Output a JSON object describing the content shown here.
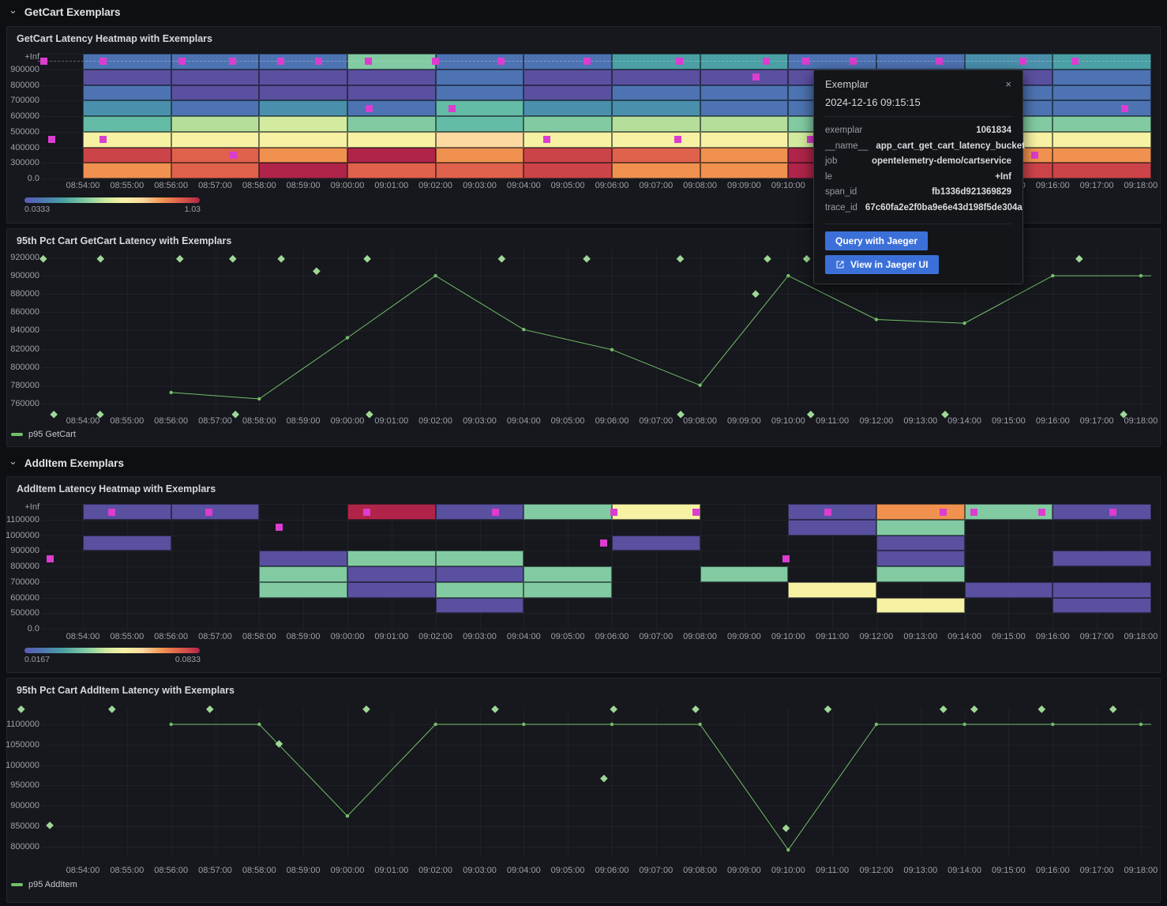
{
  "sections": [
    {
      "title": "GetCart Exemplars"
    },
    {
      "title": "AddItem Exemplars"
    }
  ],
  "time_labels": [
    "08:54:00",
    "08:55:00",
    "08:56:00",
    "08:57:00",
    "08:58:00",
    "08:59:00",
    "09:00:00",
    "09:01:00",
    "09:02:00",
    "09:03:00",
    "09:04:00",
    "09:05:00",
    "09:06:00",
    "09:07:00",
    "09:08:00",
    "09:09:00",
    "09:10:00",
    "09:11:00",
    "09:12:00",
    "09:13:00",
    "09:14:00",
    "09:15:00",
    "09:16:00",
    "09:17:00",
    "09:18:00"
  ],
  "palette": {
    "P": "#5a50a0",
    "B": "#4d73b2",
    "SB": "#4a90ad",
    "T": "#4aa0a4",
    "TG": "#64bba6",
    "G": "#82cba2",
    "LG": "#b5de9b",
    "YG": "#d3eb9f",
    "Y": "#f7f1a4",
    "PY": "#fbd9a0",
    "O": "#f0914f",
    "RO": "#e0614c",
    "R": "#cc4449",
    "DR": "#b02449"
  },
  "colors": {
    "exemplar": "#dc3cd0",
    "line": "#73bf69",
    "diamond": "#9fd796",
    "button_bg": "#3c70d9"
  },
  "heatmap_getcart": {
    "title": "GetCart Latency Heatmap with Exemplars",
    "y_labels": [
      "+Inf",
      "900000",
      "800000",
      "700000",
      "600000",
      "500000",
      "400000",
      "300000",
      "0.0"
    ],
    "legend": {
      "min": "0.0333",
      "max": "1.03"
    },
    "cells": [
      [
        "B",
        "B",
        "B",
        "G",
        "B",
        "B",
        "T",
        "T",
        "B",
        "B",
        "SB",
        "T"
      ],
      [
        "P",
        "P",
        "P",
        "P",
        "B",
        "P",
        "P",
        "P",
        "P",
        "P",
        "P",
        "B"
      ],
      [
        "B",
        "P",
        "P",
        "P",
        "B",
        "P",
        "B",
        "B",
        "B",
        "B",
        "B",
        "B"
      ],
      [
        "SB",
        "B",
        "SB",
        "B",
        "TG",
        "SB",
        "SB",
        "B",
        "B",
        "B",
        "B",
        "B"
      ],
      [
        "TG",
        "LG",
        "YG",
        "G",
        "TG",
        "G",
        "LG",
        "LG",
        "G",
        "G",
        "G",
        "G"
      ],
      [
        "Y",
        "Y",
        "Y",
        "Y",
        "PY",
        "Y",
        "Y",
        "Y",
        "YG",
        "Y",
        "Y",
        "Y"
      ],
      [
        "R",
        "RO",
        "O",
        "DR",
        "O",
        "R",
        "RO",
        "O",
        "DR",
        "O",
        "O",
        "O"
      ],
      [
        "O",
        "RO",
        "DR",
        "RO",
        "RO",
        "R",
        "O",
        "O",
        "DR",
        "RO",
        "R",
        "R"
      ]
    ],
    "exemplars_inf_t": [
      -0.88,
      0.45,
      2.24,
      3.4,
      4.48,
      5.34,
      6.48,
      8.0,
      9.49,
      11.43,
      13.54,
      15.5,
      16.4,
      17.48,
      19.42,
      21.33,
      22.51
    ],
    "exemplars_body": [
      {
        "t": 15.26,
        "row": 1
      },
      {
        "t": 6.5,
        "row": 3
      },
      {
        "t": 8.38,
        "row": 3
      },
      {
        "t": 23.64,
        "row": 3
      },
      {
        "t": -0.7,
        "row": 5
      },
      {
        "t": 0.45,
        "row": 5
      },
      {
        "t": 10.53,
        "row": 5
      },
      {
        "t": 13.5,
        "row": 5
      },
      {
        "t": 16.5,
        "row": 5
      },
      {
        "t": 3.42,
        "row": 6
      },
      {
        "t": 21.6,
        "row": 6
      }
    ]
  },
  "line_getcart": {
    "title": "95th Pct Cart GetCart Latency with Exemplars",
    "legend": "p95 GetCart",
    "y_ticks": [
      "920000",
      "900000",
      "880000",
      "860000",
      "840000",
      "820000",
      "800000",
      "780000",
      "760000"
    ],
    "times": [
      2,
      4,
      6,
      8,
      10,
      12,
      14,
      16,
      18,
      20,
      22,
      24
    ],
    "values": [
      772000,
      765000,
      832000,
      900000,
      841000,
      819000,
      780000,
      900000,
      852000,
      848000,
      900000,
      900000
    ],
    "diamonds": [
      [
        -0.9,
        918500
      ],
      [
        0.4,
        918500
      ],
      [
        2.2,
        918500
      ],
      [
        3.4,
        918500
      ],
      [
        4.5,
        918500
      ],
      [
        6.45,
        918500
      ],
      [
        9.5,
        918500
      ],
      [
        11.43,
        918500
      ],
      [
        13.55,
        918500
      ],
      [
        15.53,
        918500
      ],
      [
        16.42,
        918500
      ],
      [
        22.6,
        918500
      ],
      [
        5.3,
        905000
      ],
      [
        15.26,
        880000
      ],
      [
        -0.66,
        748000
      ],
      [
        0.39,
        748000
      ],
      [
        3.46,
        748000
      ],
      [
        6.5,
        748000
      ],
      [
        13.56,
        748000
      ],
      [
        16.51,
        748000
      ],
      [
        19.56,
        748000
      ],
      [
        23.61,
        748000
      ]
    ]
  },
  "heatmap_additem": {
    "title": "AddItem Latency Heatmap with Exemplars",
    "y_labels": [
      "+Inf",
      "1100000",
      "1000000",
      "900000",
      "800000",
      "700000",
      "600000",
      "500000",
      "0.0"
    ],
    "legend": {
      "min": "0.0167",
      "max": "0.0833"
    },
    "cells": [
      [
        "P",
        "P",
        null,
        "DR",
        "P",
        "G",
        "Y",
        null,
        "P",
        "O",
        "G",
        "P"
      ],
      [
        null,
        null,
        null,
        null,
        null,
        null,
        null,
        null,
        "P",
        "G",
        null,
        null
      ],
      [
        "P",
        null,
        null,
        null,
        null,
        null,
        "P",
        null,
        null,
        "P",
        null,
        null
      ],
      [
        null,
        null,
        "P",
        "G",
        "G",
        null,
        null,
        null,
        null,
        "P",
        null,
        "P"
      ],
      [
        null,
        null,
        "G",
        "P",
        "P",
        "G",
        null,
        "G",
        null,
        "G",
        null,
        null
      ],
      [
        null,
        null,
        "G",
        "P",
        "G",
        "G",
        null,
        null,
        "Y",
        null,
        "P",
        "P"
      ],
      [
        null,
        null,
        null,
        null,
        "P",
        null,
        null,
        null,
        null,
        "Y",
        null,
        "P"
      ],
      [
        null,
        null,
        null,
        null,
        null,
        null,
        null,
        null,
        null,
        null,
        null,
        null
      ]
    ],
    "exemplars_inf_t": [
      0.65,
      2.85,
      6.44,
      9.35,
      12.04,
      13.9,
      16.9,
      19.52,
      20.22,
      21.75,
      23.37
    ],
    "exemplars_body": [
      {
        "t": -0.75,
        "row": 3
      },
      {
        "t": 4.45,
        "row": 1
      },
      {
        "t": 11.82,
        "row": 2
      },
      {
        "t": 15.95,
        "row": 3
      }
    ]
  },
  "line_additem": {
    "title": "95th Pct Cart AddItem Latency with Exemplars",
    "legend": "p95 AddItem",
    "y_ticks": [
      "1100000",
      "1050000",
      "1000000",
      "950000",
      "900000",
      "850000",
      "800000"
    ],
    "times": [
      2,
      4,
      6,
      8,
      10,
      12,
      14,
      16,
      18,
      20,
      22,
      24
    ],
    "values": [
      1100000,
      1100000,
      875000,
      1100000,
      1100000,
      1100000,
      1100000,
      792000,
      1100000,
      1100000,
      1100000,
      1100000
    ],
    "diamonds": [
      [
        -1.4,
        1137000
      ],
      [
        0.66,
        1137000
      ],
      [
        2.88,
        1137000
      ],
      [
        6.43,
        1137000
      ],
      [
        9.35,
        1137000
      ],
      [
        12.04,
        1137000
      ],
      [
        13.9,
        1137000
      ],
      [
        16.9,
        1137000
      ],
      [
        19.52,
        1137000
      ],
      [
        20.22,
        1137000
      ],
      [
        21.75,
        1137000
      ],
      [
        23.37,
        1137000
      ],
      [
        -0.75,
        852000
      ],
      [
        4.45,
        1052000
      ],
      [
        11.82,
        967000
      ],
      [
        15.95,
        845000
      ]
    ]
  },
  "tooltip": {
    "title": "Exemplar",
    "close_icon": "×",
    "timestamp": "2024-12-16 09:15:15",
    "rows": [
      [
        "exemplar",
        "1061834"
      ],
      [
        "__name__",
        "app_cart_get_cart_latency_bucket"
      ],
      [
        "job",
        "opentelemetry-demo/cartservice"
      ],
      [
        "le",
        "+Inf"
      ],
      [
        "span_id",
        "fb1336d921369829"
      ],
      [
        "trace_id",
        "67c60fa2e2f0ba9e6e43d198f5de304a"
      ]
    ],
    "buttons": [
      {
        "label": "Query with Jaeger"
      },
      {
        "label": "View in Jaeger UI"
      }
    ]
  }
}
